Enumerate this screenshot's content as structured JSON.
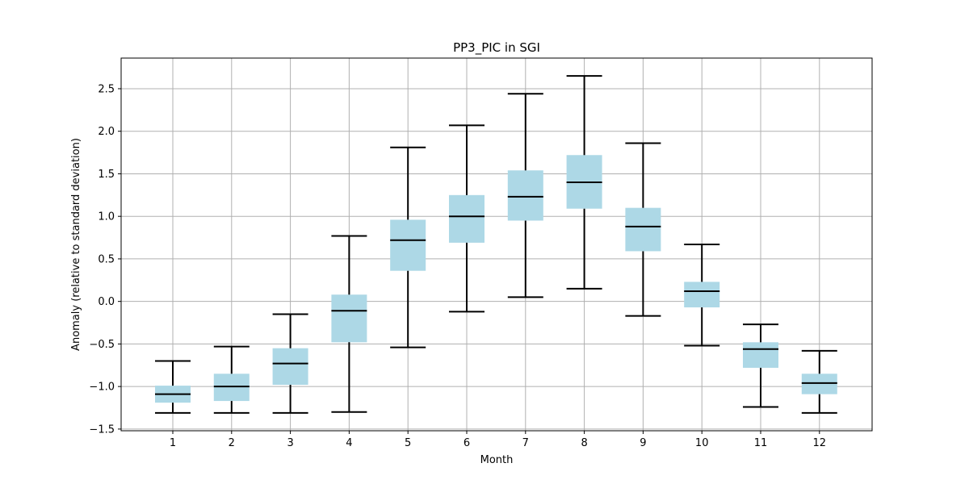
{
  "chart_data": {
    "type": "box",
    "title": "PP3_PIC in SGI",
    "xlabel": "Month",
    "ylabel": "Anomaly (relative to standard deviation)",
    "categories": [
      "1",
      "2",
      "3",
      "4",
      "5",
      "6",
      "7",
      "8",
      "9",
      "10",
      "11",
      "12"
    ],
    "ylim": [
      -1.52,
      2.86
    ],
    "yticks": [
      -1.5,
      -1.0,
      -0.5,
      0.0,
      0.5,
      1.0,
      1.5,
      2.0,
      2.5
    ],
    "ytick_labels": [
      "−1.5",
      "−1.0",
      "−0.5",
      "0.0",
      "0.5",
      "1.0",
      "1.5",
      "2.0",
      "2.5"
    ],
    "grid": true,
    "box_color": "#add8e6",
    "line_color": "#000000",
    "boxes": [
      {
        "month": "1",
        "whisker_low": -1.31,
        "q1": -1.19,
        "median": -1.09,
        "q3": -0.99,
        "whisker_high": -0.7
      },
      {
        "month": "2",
        "whisker_low": -1.31,
        "q1": -1.17,
        "median": -1.0,
        "q3": -0.85,
        "whisker_high": -0.53
      },
      {
        "month": "3",
        "whisker_low": -1.31,
        "q1": -0.98,
        "median": -0.73,
        "q3": -0.55,
        "whisker_high": -0.15
      },
      {
        "month": "4",
        "whisker_low": -1.3,
        "q1": -0.48,
        "median": -0.11,
        "q3": 0.08,
        "whisker_high": 0.77
      },
      {
        "month": "5",
        "whisker_low": -0.54,
        "q1": 0.36,
        "median": 0.72,
        "q3": 0.96,
        "whisker_high": 1.81
      },
      {
        "month": "6",
        "whisker_low": -0.12,
        "q1": 0.69,
        "median": 1.0,
        "q3": 1.25,
        "whisker_high": 2.07
      },
      {
        "month": "7",
        "whisker_low": 0.05,
        "q1": 0.95,
        "median": 1.23,
        "q3": 1.54,
        "whisker_high": 2.44
      },
      {
        "month": "8",
        "whisker_low": 0.15,
        "q1": 1.09,
        "median": 1.4,
        "q3": 1.72,
        "whisker_high": 2.65
      },
      {
        "month": "9",
        "whisker_low": -0.17,
        "q1": 0.59,
        "median": 0.88,
        "q3": 1.1,
        "whisker_high": 1.86
      },
      {
        "month": "10",
        "whisker_low": -0.52,
        "q1": -0.07,
        "median": 0.12,
        "q3": 0.23,
        "whisker_high": 0.67
      },
      {
        "month": "11",
        "whisker_low": -1.24,
        "q1": -0.78,
        "median": -0.56,
        "q3": -0.48,
        "whisker_high": -0.27
      },
      {
        "month": "12",
        "whisker_low": -1.31,
        "q1": -1.09,
        "median": -0.96,
        "q3": -0.85,
        "whisker_high": -0.58
      }
    ]
  }
}
